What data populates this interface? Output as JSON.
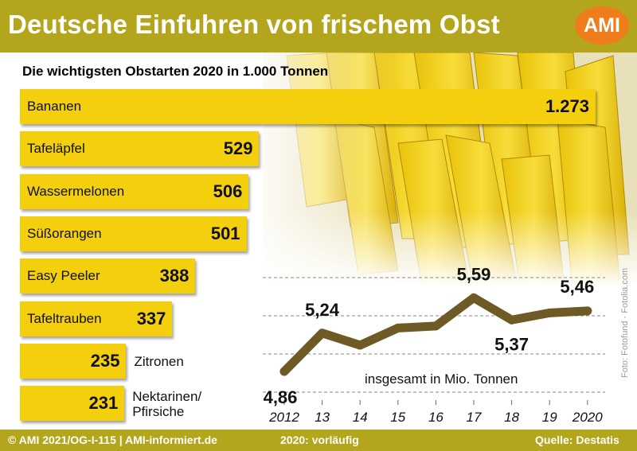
{
  "header": {
    "title": "Deutsche Einfuhren von frischem Obst",
    "logo": "AMI"
  },
  "colors": {
    "header_bg": "#b3a61c",
    "bar": "#f4cf0d",
    "line": "#6e5a24",
    "logo": "#f07d1b"
  },
  "footer": {
    "copyright": "© AMI 2021/OG-I-115 | AMI-informiert.de",
    "note": "2020: vorläufig",
    "source": "Quelle: Destatis"
  },
  "photo_credit": "Foto: Fotofund - Fotolia.com",
  "chart_data": [
    {
      "type": "bar",
      "orientation": "horizontal",
      "title": "Die wichtigsten Obstarten 2020 in 1.000 Tonnen",
      "categories": [
        "Bananen",
        "Tafeläpfel",
        "Wassermelonen",
        "Süßorangen",
        "Easy Peeler",
        "Tafeltrauben",
        "Zitronen",
        "Nektarinen/ Pfirsiche"
      ],
      "values": [
        1273,
        529,
        506,
        501,
        388,
        337,
        235,
        231
      ],
      "value_labels": [
        "1.273",
        "529",
        "506",
        "501",
        "388",
        "337",
        "235",
        "231"
      ]
    },
    {
      "type": "line",
      "annotation": "insgesamt in Mio. Tonnen",
      "x": [
        2012,
        2013,
        2014,
        2015,
        2016,
        2017,
        2018,
        2019,
        2020
      ],
      "x_tick_labels": [
        "2012",
        "13",
        "14",
        "15",
        "16",
        "17",
        "18",
        "19",
        "2020"
      ],
      "y": [
        4.86,
        5.24,
        5.12,
        5.29,
        5.31,
        5.59,
        5.37,
        5.44,
        5.46
      ],
      "data_labels": [
        {
          "index": 0,
          "text": "4,86"
        },
        {
          "index": 1,
          "text": "5,24"
        },
        {
          "index": 5,
          "text": "5,59"
        },
        {
          "index": 6,
          "text": "5,37"
        },
        {
          "index": 8,
          "text": "5,46"
        }
      ],
      "ylim": [
        4.6,
        5.9
      ],
      "grid": true
    }
  ]
}
